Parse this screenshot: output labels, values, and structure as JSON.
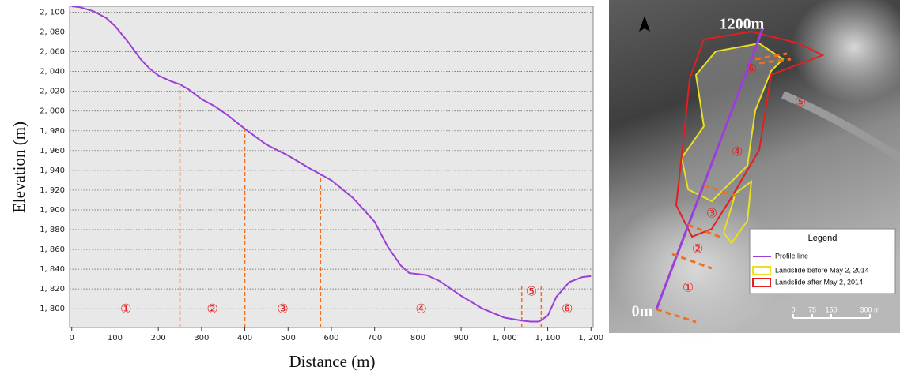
{
  "chart_data": {
    "type": "line",
    "ylabel": "Elevation (m)",
    "xlabel": "Distance (m)",
    "color": "#9b3fd6",
    "divider_color": "#f07020",
    "grid": true,
    "xlim": [
      -5,
      1205
    ],
    "ylim": [
      1781,
      2106
    ],
    "xticks": [
      0,
      100,
      200,
      300,
      400,
      500,
      600,
      700,
      800,
      900,
      {
        "value": 1000,
        "label": "1, 000"
      },
      {
        "value": 1100,
        "label": "1, 100"
      },
      {
        "value": 1200,
        "label": "1, 200"
      }
    ],
    "yticks": [
      {
        "value": 1800,
        "label": "1, 800"
      },
      {
        "value": 1820,
        "label": "1, 820"
      },
      {
        "value": 1840,
        "label": "1, 840"
      },
      {
        "value": 1860,
        "label": "1, 860"
      },
      {
        "value": 1880,
        "label": "1, 880"
      },
      {
        "value": 1900,
        "label": "1, 900"
      },
      {
        "value": 1920,
        "label": "1, 920"
      },
      {
        "value": 1940,
        "label": "1, 940"
      },
      {
        "value": 1960,
        "label": "1, 960"
      },
      {
        "value": 1980,
        "label": "1, 980"
      },
      {
        "value": 2000,
        "label": "2, 000"
      },
      {
        "value": 2020,
        "label": "2, 020"
      },
      {
        "value": 2040,
        "label": "2, 040"
      },
      {
        "value": 2060,
        "label": "2, 060"
      },
      {
        "value": 2080,
        "label": "2, 080"
      },
      {
        "value": 2100,
        "label": "2, 100"
      }
    ],
    "x": [
      0,
      20,
      50,
      80,
      100,
      130,
      160,
      180,
      200,
      230,
      250,
      270,
      300,
      330,
      360,
      400,
      450,
      500,
      550,
      600,
      650,
      700,
      730,
      760,
      780,
      820,
      850,
      900,
      950,
      1000,
      1040,
      1060,
      1080,
      1100,
      1120,
      1150,
      1180,
      1200
    ],
    "values": [
      2106,
      2105,
      2101,
      2094,
      2086,
      2070,
      2052,
      2043,
      2036,
      2030,
      2027,
      2022,
      2012,
      2005,
      1996,
      1982,
      1966,
      1955,
      1942,
      1930,
      1912,
      1888,
      1863,
      1844,
      1836,
      1834,
      1828,
      1813,
      1800,
      1791,
      1788,
      1787,
      1787,
      1793,
      1812,
      1827,
      1832,
      1833
    ],
    "dividers": [
      {
        "x": 250,
        "top": 2025
      },
      {
        "x": 400,
        "top": 1982
      },
      {
        "x": 575,
        "top": 1935
      },
      {
        "x": 1040,
        "top": 1825
      },
      {
        "x": 1085,
        "top": 1825
      }
    ],
    "sections": [
      "①",
      "②",
      "③",
      "④",
      "⑤",
      "⑥"
    ]
  },
  "map": {
    "end_label": "1200m",
    "start_label": "0m",
    "zones": [
      "①",
      "②",
      "③",
      "④",
      "⑤",
      "⑥"
    ],
    "legend": {
      "title": "Legend",
      "items": [
        "Profile line",
        "Landslide before May 2, 2014",
        "Landslide after May 2, 2014"
      ]
    },
    "scale": [
      "0",
      "75",
      "150",
      "300 m"
    ]
  }
}
